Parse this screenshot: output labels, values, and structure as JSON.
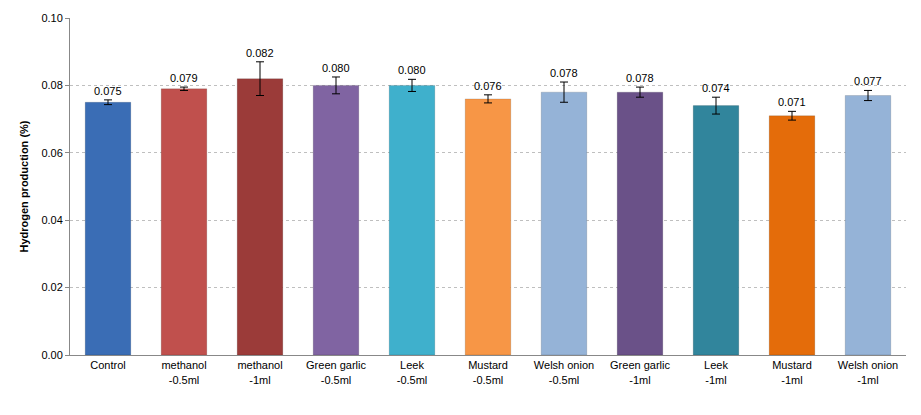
{
  "chart_data": {
    "type": "bar",
    "y_label": "Hydrogen production (%)",
    "categories": [
      "Control",
      "methanol\n-0.5ml",
      "methanol\n-1ml",
      "Green garlic\n-0.5ml",
      "Leek\n-0.5ml",
      "Mustard\n-0.5ml",
      "Welsh onion\n-0.5ml",
      "Green garlic\n-1ml",
      "Leek\n-1ml",
      "Mustard\n-1ml",
      "Welsh onion\n-1ml"
    ],
    "values": [
      0.075,
      0.079,
      0.082,
      0.08,
      0.08,
      0.076,
      0.078,
      0.078,
      0.074,
      0.071,
      0.077
    ],
    "value_labels": [
      "0.075",
      "0.079",
      "0.082",
      "0.080",
      "0.080",
      "0.076",
      "0.078",
      "0.078",
      "0.074",
      "0.071",
      "0.077"
    ],
    "errors": [
      0.0007,
      0.0005,
      0.005,
      0.0025,
      0.0018,
      0.0012,
      0.003,
      0.0015,
      0.0025,
      0.0013,
      0.0015
    ],
    "colors": [
      "#3a6db5",
      "#c0504d",
      "#9b3b39",
      "#8064a2",
      "#3fb0cc",
      "#f79646",
      "#95b3d7",
      "#6a5188",
      "#31859c",
      "#e46c0a",
      "#95b3d7"
    ],
    "ylim": [
      0,
      0.1
    ],
    "yticks": [
      {
        "value": 0,
        "label": "0.00"
      },
      {
        "value": 0.02,
        "label": "0.02"
      },
      {
        "value": 0.04,
        "label": "0.04"
      },
      {
        "value": 0.06,
        "label": "0.06"
      },
      {
        "value": 0.08,
        "label": "0.08"
      },
      {
        "value": 0.1,
        "label": "0.10"
      }
    ],
    "grid": true,
    "data_labels": true
  }
}
